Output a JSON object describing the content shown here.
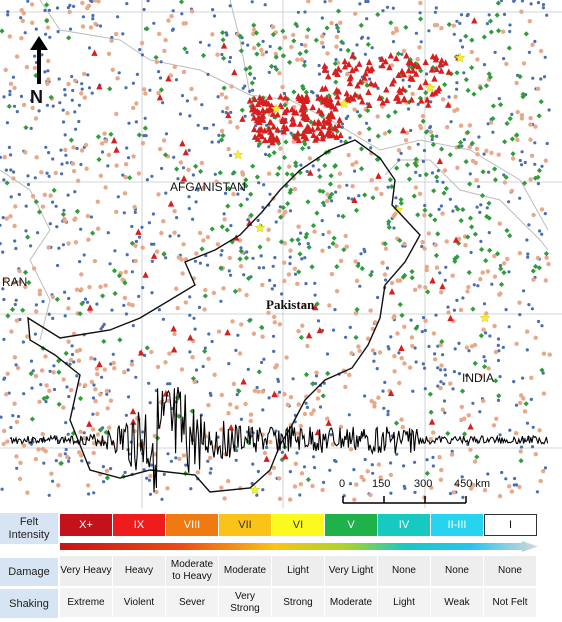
{
  "map": {
    "labels": {
      "afghanistan": "AFGANISTAN",
      "pakistan": "Pakistan",
      "india": "INDIA",
      "iran": "RAN"
    },
    "north_label": "N",
    "scale": {
      "ticks": [
        "0",
        "150",
        "300",
        "450 km"
      ]
    },
    "colors": {
      "background": "#ffffff",
      "grid": "#b8bcc4",
      "border": "#c8c8c8",
      "pakistan_outline": "#111111",
      "dot_blue": "#4a6fb0",
      "dot_peach": "#e8a88a",
      "diamond_green": "#2e9d3a",
      "triangle_red": "#d62020",
      "star_yellow": "#f3ee3a",
      "seismogram": "#000000"
    },
    "marker_legend_implicit": [
      "blue-dot",
      "peach-dot",
      "green-diamond",
      "red-triangle",
      "yellow-star"
    ]
  },
  "legend": {
    "felt_intensity_title": "Felt Intensity",
    "damage_title": "Damage",
    "shaking_title": "Shaking",
    "intensities": [
      {
        "label": "X+",
        "color": "#c4121b"
      },
      {
        "label": "IX",
        "color": "#ee1c1c"
      },
      {
        "label": "VIII",
        "color": "#f07a12"
      },
      {
        "label": "VII",
        "color": "#fbc317"
      },
      {
        "label": "VI",
        "color": "#fbf91d"
      },
      {
        "label": "V",
        "color": "#1fb14a"
      },
      {
        "label": "IV",
        "color": "#17c9c0"
      },
      {
        "label": "II-III",
        "color": "#27d4f0"
      },
      {
        "label": "I",
        "color": "#ffffff"
      }
    ],
    "damage": [
      "Very Heavy",
      "Heavy",
      "Moderate to Heavy",
      "Moderate",
      "Light",
      "Very Light",
      "None",
      "None",
      "None"
    ],
    "shaking": [
      "Extreme",
      "Violent",
      "Sever",
      "Very Strong",
      "Strong",
      "Moderate",
      "Light",
      "Weak",
      "Not Felt"
    ]
  }
}
